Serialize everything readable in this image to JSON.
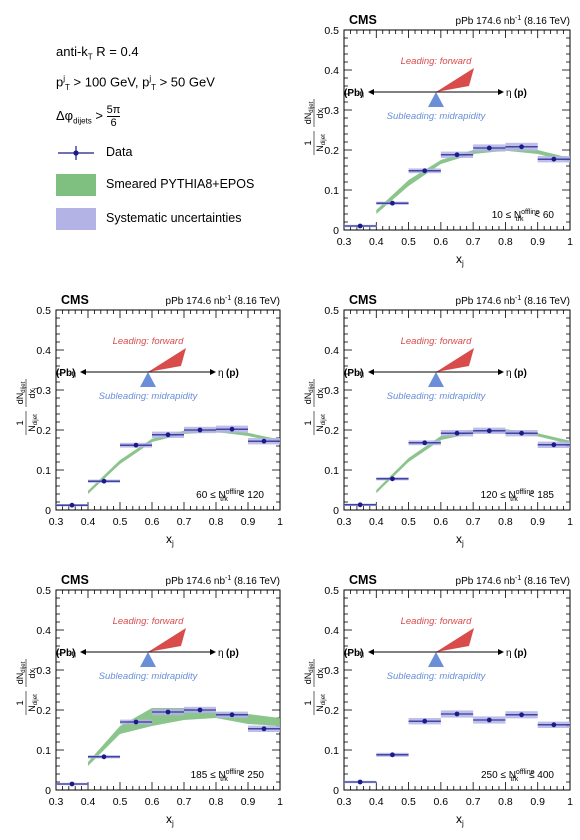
{
  "legend": {
    "algo": "anti-k",
    "algo_sub": "T",
    "algo_rest": " R = 0.4",
    "pt1_pre": "p",
    "pt1_sup": "j",
    "pt1_sub": "T",
    "pt1_rest": " > 100 GeV, ",
    "pt2_pre": "p",
    "pt2_sup": "j",
    "pt2_sub": "T",
    "pt2_rest": " > 50 GeV",
    "dphi_pre": "Δφ",
    "dphi_sub": "dijets",
    "dphi_rest": " > ",
    "dphi_num": "5π",
    "dphi_den": "6",
    "entries": [
      {
        "label": "Data",
        "color": "#1a1a8c"
      },
      {
        "label": "Smeared PYTHIA8+EPOS",
        "color": "#7fbf7f"
      },
      {
        "label": "Systematic uncertainties",
        "color": "#b3b3e6"
      }
    ]
  },
  "common": {
    "cms": "CMS",
    "lumi": "pPb 174.6 nb",
    "lumi_sup": "-1",
    "energy": " (8.16 TeV)",
    "xlabel": "x",
    "xlabel_sub": "j",
    "ylabel_num": "dN",
    "ylabel_num_sub": "dijet",
    "ylabel_den_pre": "N",
    "ylabel_den_sub": "dijet",
    "ylabel_dx": "dx",
    "ylabel_dx_sub": "j",
    "leading": "Leading: forward",
    "subleading": "Subleading: midrapidity",
    "pb": "(Pb)",
    "p": "(p)",
    "eta_minus": "-η",
    "eta_plus": "η",
    "xticks": [
      "0.3",
      "0.4",
      "0.5",
      "0.6",
      "0.7",
      "0.8",
      "0.9",
      "1"
    ],
    "yticks": [
      "0",
      "0.1",
      "0.2",
      "0.3",
      "0.4",
      "0.5"
    ],
    "colors": {
      "data": "#1a1a8c",
      "model": "#7fbf7f",
      "syst": "#b3b3e6",
      "leading": "#d94c4c",
      "subleading": "#6a8fd8"
    }
  },
  "chart_data": [
    {
      "type": "scatter",
      "bin_label": "10 ≤ N",
      "bin_sup": "offline",
      "bin_sub": "trk",
      "bin_rest": " < 60",
      "xlim": [
        0.3,
        1.0
      ],
      "ylim": [
        0,
        0.5
      ],
      "x": [
        0.35,
        0.45,
        0.55,
        0.65,
        0.75,
        0.85,
        0.95
      ],
      "values": [
        0.01,
        0.067,
        0.148,
        0.188,
        0.205,
        0.208,
        0.177
      ],
      "syst": [
        0.003,
        0.004,
        0.006,
        0.008,
        0.009,
        0.01,
        0.008
      ],
      "model_x": [
        0.4,
        0.5,
        0.6,
        0.7,
        0.8,
        0.9,
        1.0
      ],
      "model_lo": [
        0.04,
        0.11,
        0.165,
        0.19,
        0.198,
        0.19,
        0.17
      ],
      "model_hi": [
        0.05,
        0.125,
        0.175,
        0.2,
        0.208,
        0.2,
        0.18
      ],
      "model_visible": true
    },
    {
      "type": "scatter",
      "bin_label": "60 ≤ N",
      "bin_sup": "offline",
      "bin_sub": "trk",
      "bin_rest": " < 120",
      "xlim": [
        0.3,
        1.0
      ],
      "ylim": [
        0,
        0.5
      ],
      "x": [
        0.35,
        0.45,
        0.55,
        0.65,
        0.75,
        0.85,
        0.95
      ],
      "values": [
        0.012,
        0.072,
        0.162,
        0.188,
        0.2,
        0.202,
        0.172
      ],
      "syst": [
        0.003,
        0.004,
        0.006,
        0.008,
        0.008,
        0.009,
        0.008
      ],
      "model_x": [
        0.4,
        0.5,
        0.6,
        0.7,
        0.8,
        0.9,
        1.0
      ],
      "model_lo": [
        0.04,
        0.115,
        0.17,
        0.19,
        0.195,
        0.185,
        0.168
      ],
      "model_hi": [
        0.048,
        0.125,
        0.178,
        0.198,
        0.203,
        0.193,
        0.176
      ],
      "model_visible": true
    },
    {
      "type": "scatter",
      "bin_label": "120 ≤ N",
      "bin_sup": "offline",
      "bin_sub": "trk",
      "bin_rest": " < 185",
      "xlim": [
        0.3,
        1.0
      ],
      "ylim": [
        0,
        0.5
      ],
      "x": [
        0.35,
        0.45,
        0.55,
        0.65,
        0.75,
        0.85,
        0.95
      ],
      "values": [
        0.013,
        0.078,
        0.168,
        0.192,
        0.198,
        0.192,
        0.163
      ],
      "syst": [
        0.003,
        0.004,
        0.006,
        0.008,
        0.008,
        0.008,
        0.008
      ],
      "model_x": [
        0.4,
        0.5,
        0.6,
        0.7,
        0.8,
        0.9,
        1.0
      ],
      "model_lo": [
        0.042,
        0.12,
        0.175,
        0.192,
        0.194,
        0.184,
        0.165
      ],
      "model_hi": [
        0.05,
        0.13,
        0.185,
        0.2,
        0.202,
        0.192,
        0.173
      ],
      "model_visible": true
    },
    {
      "type": "scatter",
      "bin_label": "185 ≤ N",
      "bin_sup": "offline",
      "bin_sub": "trk",
      "bin_rest": " < 250",
      "xlim": [
        0.3,
        1.0
      ],
      "ylim": [
        0,
        0.5
      ],
      "x": [
        0.35,
        0.45,
        0.55,
        0.65,
        0.75,
        0.85,
        0.95
      ],
      "values": [
        0.015,
        0.083,
        0.17,
        0.195,
        0.2,
        0.188,
        0.153
      ],
      "syst": [
        0.003,
        0.004,
        0.006,
        0.008,
        0.008,
        0.008,
        0.008
      ],
      "model_x": [
        0.4,
        0.5,
        0.6,
        0.7,
        0.8,
        0.9,
        1.0
      ],
      "model_lo": [
        0.06,
        0.14,
        0.16,
        0.175,
        0.18,
        0.165,
        0.16
      ],
      "model_hi": [
        0.07,
        0.16,
        0.205,
        0.205,
        0.195,
        0.19,
        0.18
      ],
      "model_visible": true
    },
    {
      "type": "scatter",
      "bin_label": "250 ≤ N",
      "bin_sup": "offline",
      "bin_sub": "trk",
      "bin_rest": " ≤ 400",
      "xlim": [
        0.3,
        1.0
      ],
      "ylim": [
        0,
        0.5
      ],
      "x": [
        0.35,
        0.45,
        0.55,
        0.65,
        0.75,
        0.85,
        0.95
      ],
      "values": [
        0.02,
        0.088,
        0.172,
        0.19,
        0.175,
        0.188,
        0.163
      ],
      "syst": [
        0.003,
        0.005,
        0.008,
        0.009,
        0.009,
        0.009,
        0.008
      ],
      "model_x": [],
      "model_lo": [],
      "model_hi": [],
      "model_visible": false
    }
  ]
}
